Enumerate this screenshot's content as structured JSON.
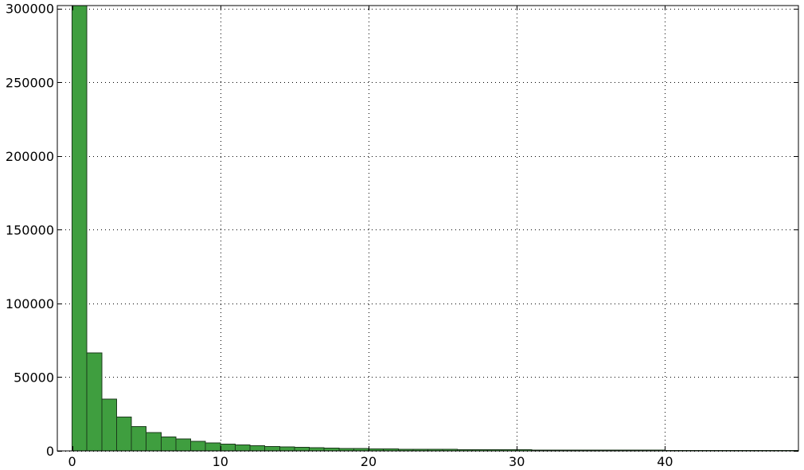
{
  "chart_data": {
    "type": "bar",
    "title": "",
    "xlabel": "",
    "ylabel": "",
    "bin_width": 1,
    "x_start": 0,
    "bins": [
      0,
      1,
      2,
      3,
      4,
      5,
      6,
      7,
      8,
      9,
      10,
      11,
      12,
      13,
      14,
      15,
      16,
      17,
      18,
      19,
      20,
      21,
      22,
      23,
      24,
      25,
      26,
      27,
      28,
      29,
      30,
      31,
      32,
      33,
      34,
      35,
      36,
      37,
      38,
      39,
      40,
      41,
      42,
      43,
      44,
      45,
      46,
      47,
      48
    ],
    "values": [
      302000,
      66500,
      35000,
      23000,
      16500,
      12300,
      9500,
      8000,
      6500,
      5500,
      4600,
      4000,
      3500,
      3000,
      2700,
      2400,
      2100,
      1900,
      1700,
      1550,
      1400,
      1300,
      1200,
      1100,
      1000,
      950,
      900,
      850,
      800,
      750,
      700,
      660,
      620,
      580,
      550,
      520,
      490,
      460,
      440,
      420,
      400,
      380,
      360,
      340,
      320,
      300,
      285,
      270,
      255
    ],
    "xlim": [
      -1,
      49
    ],
    "ylim": [
      0,
      302000
    ],
    "xticks": [
      0,
      10,
      20,
      30,
      40
    ],
    "xtick_labels": [
      "0",
      "10",
      "20",
      "30",
      "40"
    ],
    "yticks": [
      0,
      50000,
      100000,
      150000,
      200000,
      250000,
      300000
    ],
    "ytick_labels": [
      "0",
      "50000",
      "100000",
      "150000",
      "200000",
      "250000",
      "300000"
    ],
    "grid": true,
    "bar_color": "#3f9e3f",
    "edge_color": "#1b3a1b"
  }
}
